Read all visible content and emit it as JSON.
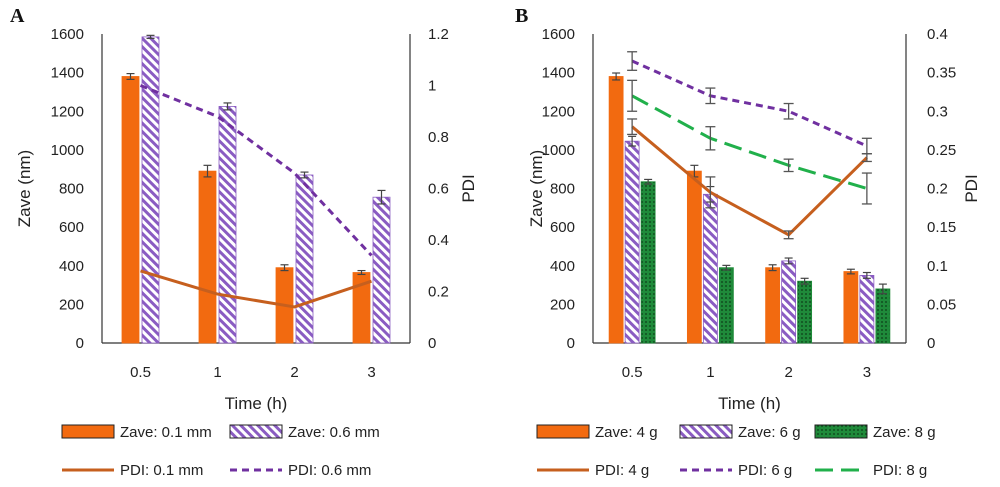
{
  "chart_data": [
    {
      "panel": "A",
      "type": "bar",
      "categories": [
        "0.5",
        "1",
        "2",
        "3"
      ],
      "xlabel": "Time (h)",
      "ylabel": "Zave (nm)",
      "y2label": "PDI",
      "ylim": [
        0,
        1600
      ],
      "y_ticks": [
        "0",
        "200",
        "400",
        "600",
        "800",
        "1000",
        "1200",
        "1400",
        "1600"
      ],
      "y2lim": [
        0,
        1.2
      ],
      "y2_ticks": [
        "0",
        "0.2",
        "0.4",
        "0.6",
        "0.8",
        "1",
        "1.2"
      ],
      "bar_series": [
        {
          "name": "Zave: 0.1 mm",
          "values": [
            1380,
            890,
            390,
            365
          ],
          "errors": [
            15,
            30,
            15,
            10
          ],
          "color": "#f26a10",
          "pattern": "solid"
        },
        {
          "name": "Zave: 0.6 mm",
          "values": [
            1585,
            1225,
            870,
            755
          ],
          "errors": [
            8,
            18,
            15,
            35
          ],
          "color": "#8a5cc2",
          "pattern": "hatch"
        }
      ],
      "line_series": [
        {
          "name": "PDI: 0.1 mm",
          "values": [
            0.28,
            0.19,
            0.14,
            0.24
          ],
          "color": "#c65f1e",
          "dash": "solid"
        },
        {
          "name": "PDI: 0.6 mm",
          "values": [
            1.0,
            0.88,
            0.66,
            0.34
          ],
          "color": "#7030a0",
          "dash": "dashed"
        }
      ]
    },
    {
      "panel": "B",
      "type": "bar",
      "categories": [
        "0.5",
        "1",
        "2",
        "3"
      ],
      "xlabel": "Time (h)",
      "ylabel": "Zave (nm)",
      "y2label": "PDI",
      "ylim": [
        0,
        1600
      ],
      "y_ticks": [
        "0",
        "200",
        "400",
        "600",
        "800",
        "1000",
        "1200",
        "1400",
        "1600"
      ],
      "y2lim": [
        0,
        0.4
      ],
      "y2_ticks": [
        "0",
        "0.05",
        "0.1",
        "0.15",
        "0.2",
        "0.25",
        "0.3",
        "0.35",
        "0.4"
      ],
      "bar_series": [
        {
          "name": "Zave: 4 g",
          "values": [
            1380,
            890,
            390,
            370
          ],
          "errors": [
            18,
            30,
            15,
            12
          ],
          "color": "#f26a10",
          "pattern": "solid"
        },
        {
          "name": "Zave: 6 g",
          "values": [
            1045,
            770,
            425,
            350
          ],
          "errors": [
            25,
            40,
            15,
            15
          ],
          "color": "#8a5cc2",
          "pattern": "hatch"
        },
        {
          "name": "Zave: 8 g",
          "values": [
            835,
            390,
            320,
            280
          ],
          "errors": [
            12,
            12,
            15,
            25
          ],
          "color": "#1f8a3a",
          "pattern": "dots"
        }
      ],
      "line_series": [
        {
          "name": "PDI: 4 g",
          "values": [
            0.28,
            0.195,
            0.14,
            0.24
          ],
          "errors": [
            0.01,
            0.02,
            0.005,
            0.005
          ],
          "color": "#c65f1e",
          "dash": "solid"
        },
        {
          "name": "PDI: 6 g",
          "values": [
            0.365,
            0.32,
            0.3,
            0.255
          ],
          "errors": [
            0.012,
            0.01,
            0.01,
            0.01
          ],
          "color": "#7030a0",
          "dash": "dashed"
        },
        {
          "name": "PDI: 8 g",
          "values": [
            0.32,
            0.265,
            0.23,
            0.2
          ],
          "errors": [
            0.02,
            0.015,
            0.008,
            0.02
          ],
          "color": "#21b04b",
          "dash": "longdash"
        }
      ]
    }
  ]
}
